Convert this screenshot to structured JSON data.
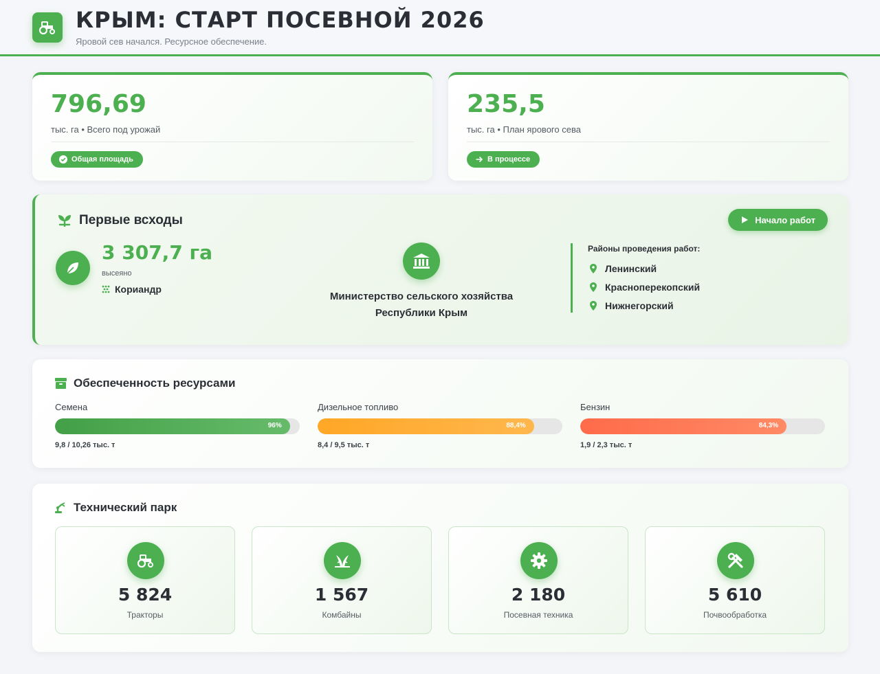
{
  "header": {
    "title": "КРЫМ: СТАРТ ПОСЕВНОЙ 2026",
    "subtitle": "Яровой сев начался. Ресурсное обеспечение.",
    "logo_icon": "tractor-icon"
  },
  "stats": [
    {
      "value": "796,69",
      "label": "тыс. га • Всего под урожай",
      "badge": "Общая площадь",
      "badge_icon": "check-circle-icon"
    },
    {
      "value": "235,5",
      "label": "тыс. га • План ярового сева",
      "badge": "В процессе",
      "badge_icon": "arrow-right-icon"
    }
  ],
  "sprouts": {
    "title": "Первые всходы",
    "start_button": "Начало работ",
    "area": "3 307,7 га",
    "sown_label": "высеяно",
    "crop": "Кориандр",
    "ministry": "Министерство сельского хозяйства Республики Крым",
    "districts_title": "Районы проведения работ:",
    "districts": [
      "Ленинский",
      "Красноперекопский",
      "Нижнегорский"
    ]
  },
  "resources": {
    "title": "Обеспеченность ресурсами",
    "items": [
      {
        "name": "Семена",
        "percent": 96,
        "percent_label": "96%",
        "amount": "9,8 / 10,26 тыс. т",
        "color_from": "#43a047",
        "color_to": "#66bb6a"
      },
      {
        "name": "Дизельное топливо",
        "percent": 88.4,
        "percent_label": "88,4%",
        "amount": "8,4 / 9,5 тыс. т",
        "color_from": "#ffa726",
        "color_to": "#ffb74d"
      },
      {
        "name": "Бензин",
        "percent": 84.3,
        "percent_label": "84,3%",
        "amount": "1,9 / 2,3 тыс. т",
        "color_from": "#ff6b4a",
        "color_to": "#ff8a65"
      }
    ]
  },
  "tech": {
    "title": "Технический парк",
    "items": [
      {
        "value": "5 824",
        "label": "Тракторы",
        "icon": "tractor-icon"
      },
      {
        "value": "1 567",
        "label": "Комбайны",
        "icon": "grain-icon"
      },
      {
        "value": "2 180",
        "label": "Посевная техника",
        "icon": "gear-icon"
      },
      {
        "value": "5 610",
        "label": "Почвообработка",
        "icon": "tools-icon"
      }
    ]
  }
}
